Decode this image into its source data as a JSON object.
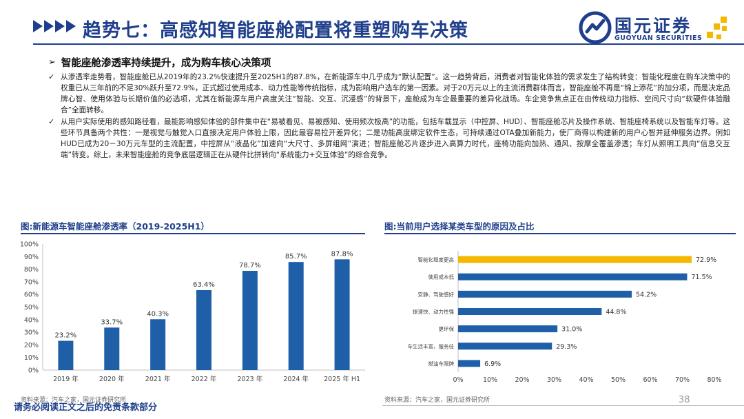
{
  "header": {
    "title": "趋势七：高感知智能座舱配置将重塑购车决策"
  },
  "logo": {
    "name_cn": "国元证券",
    "name_en": "GUOYUAN SECURITIES"
  },
  "subtitle": "智能座舱渗透率持续提升，成为购车核心决策项",
  "bullets": [
    "从渗透率走势看，智能座舱已从2019年的23.2%快速提升至2025H1的87.8%，在新能源车中几乎成为“默认配置”。这一趋势背后，消费者对智能化体验的需求发生了结构转变：智能化程度在购车决策中的权重已从三年前的不足30%跃升至72.9%，正式超过使用成本、动力性能等传统指标，成为影响用户选车的第一因素。对于20万元以上的主流消费群体而言，智能座舱不再是“锦上添花”的加分项，而是决定品牌心智、使用体验与长期价值的必选项，尤其在新能源车用户高度关注“智能、交互、沉浸感”的背景下，座舱成为车企最重要的差异化战场。车企竞争焦点正在由传统动力指标、空间尺寸向“软硬件体验融合”全面转移。",
    "从用户实际使用的感知路径看，最能影响感知体验的部件集中在“易被看见、易被感知、使用频次极高”的功能，包括车载显示（中控屏、HUD）、智能座舱芯片及操作系统、智能座椅系统以及智能车灯等。这些环节具备两个共性：一是视觉与触觉入口直接决定用户体验上限，因此最容易拉开差异化；二是功能高度绑定软件生态，可持续通过OTA叠加新能力，使厂商得以构建新的用户心智并延伸服务边界。例如HUD已成为20－30万元车型的主流配置，中控屏从“液晶化”加速向“大尺寸、多屏组网”演进；智能座舱芯片逐步进入高算力时代，座椅功能向加热、通风、按摩全覆盖渗透；车灯从照明工具向“信息交互端”转变。综上，未来智能座舱的竞争底层逻辑正在从硬件比拼转向“系统能力+交互体验”的综合竞争。"
  ],
  "left_caption": "图:新能源车智能座舱渗透率（2019-2025H1）",
  "right_caption": "图:当前用户选择某类车型的原因及占比",
  "left_source": "资料来源：汽车之家，国元证券研究所",
  "right_source": "资料来源：汽车之家，国元证券研究所",
  "footer": "请务必阅读正文之后的免责条款部分",
  "page_number": "38",
  "colors": {
    "primary": "#1f3f8c",
    "bar_blue": "#1f5fa8",
    "bar_highlight": "#f5b800"
  },
  "chart_data": [
    {
      "type": "bar",
      "orientation": "vertical",
      "categories": [
        "2019 年",
        "2020 年",
        "2021 年",
        "2022 年",
        "2023 年",
        "2024 年",
        "2025 年 H1"
      ],
      "values": [
        23.2,
        33.7,
        40.3,
        63.4,
        78.7,
        85.7,
        87.8
      ],
      "value_labels": [
        "23.2%",
        "33.7%",
        "40.3%",
        "63.4%",
        "78.7%",
        "85.7%",
        "87.8%"
      ],
      "y_ticks": [
        "0%",
        "10%",
        "20%",
        "30%",
        "40%",
        "50%",
        "60%",
        "70%",
        "80%",
        "90%",
        "100%"
      ],
      "ylim": [
        0,
        100
      ],
      "grid": false,
      "legend": "none"
    },
    {
      "type": "bar",
      "orientation": "horizontal",
      "categories": [
        "智能化程度更高",
        "使用成本低",
        "安静、驾驶感好",
        "提速快、动力性强",
        "更环保",
        "车生活丰富，服务佳",
        "燃油车限牌"
      ],
      "values": [
        72.9,
        71.5,
        54.2,
        44.8,
        31.0,
        29.3,
        6.9
      ],
      "value_labels": [
        "72.9%",
        "71.5%",
        "54.2%",
        "44.8%",
        "31.0%",
        "29.3%",
        "6.9%"
      ],
      "highlight_index": 0,
      "x_ticks": [
        "0%",
        "10%",
        "20%",
        "30%",
        "40%",
        "50%",
        "60%",
        "70%",
        "80%"
      ],
      "xlim": [
        0,
        80
      ],
      "grid": false,
      "legend": "none"
    }
  ]
}
